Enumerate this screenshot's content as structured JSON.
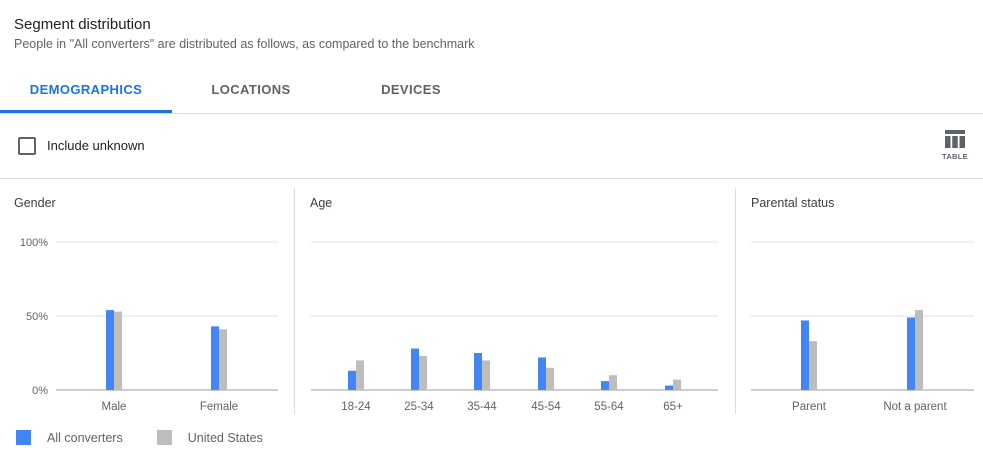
{
  "header": {
    "title": "Segment distribution",
    "subtitle": "People in \"All converters\" are distributed as follows, as compared to the benchmark"
  },
  "tabs": [
    {
      "label": "DEMOGRAPHICS",
      "active": true
    },
    {
      "label": "LOCATIONS",
      "active": false
    },
    {
      "label": "DEVICES",
      "active": false
    }
  ],
  "toolbar": {
    "include_unknown_label": "Include unknown",
    "include_unknown_checked": false,
    "table_label": "TABLE"
  },
  "colors": {
    "all_converters": "#4285f4",
    "united_states": "#bdbdbd",
    "accent": "#1a73e8"
  },
  "legend": [
    {
      "label": "All converters",
      "color": "#4285f4"
    },
    {
      "label": "United States",
      "color": "#bdbdbd"
    }
  ],
  "chart_data": [
    {
      "type": "bar",
      "title": "Gender",
      "categories": [
        "Male",
        "Female"
      ],
      "series": [
        {
          "name": "All converters",
          "values": [
            54,
            43
          ]
        },
        {
          "name": "United States",
          "values": [
            53,
            41
          ]
        }
      ],
      "yticks": [
        "100%",
        "50%",
        "0%"
      ],
      "ylim": [
        0,
        100
      ],
      "grid": true
    },
    {
      "type": "bar",
      "title": "Age",
      "categories": [
        "18-24",
        "25-34",
        "35-44",
        "45-54",
        "55-64",
        "65+"
      ],
      "series": [
        {
          "name": "All converters",
          "values": [
            13,
            28,
            25,
            22,
            6,
            3
          ]
        },
        {
          "name": "United States",
          "values": [
            20,
            23,
            20,
            15,
            10,
            7
          ]
        }
      ],
      "ylim": [
        0,
        100
      ],
      "grid": true
    },
    {
      "type": "bar",
      "title": "Parental status",
      "categories": [
        "Parent",
        "Not a parent"
      ],
      "series": [
        {
          "name": "All converters",
          "values": [
            47,
            49
          ]
        },
        {
          "name": "United States",
          "values": [
            33,
            54
          ]
        }
      ],
      "ylim": [
        0,
        100
      ],
      "grid": true
    }
  ]
}
